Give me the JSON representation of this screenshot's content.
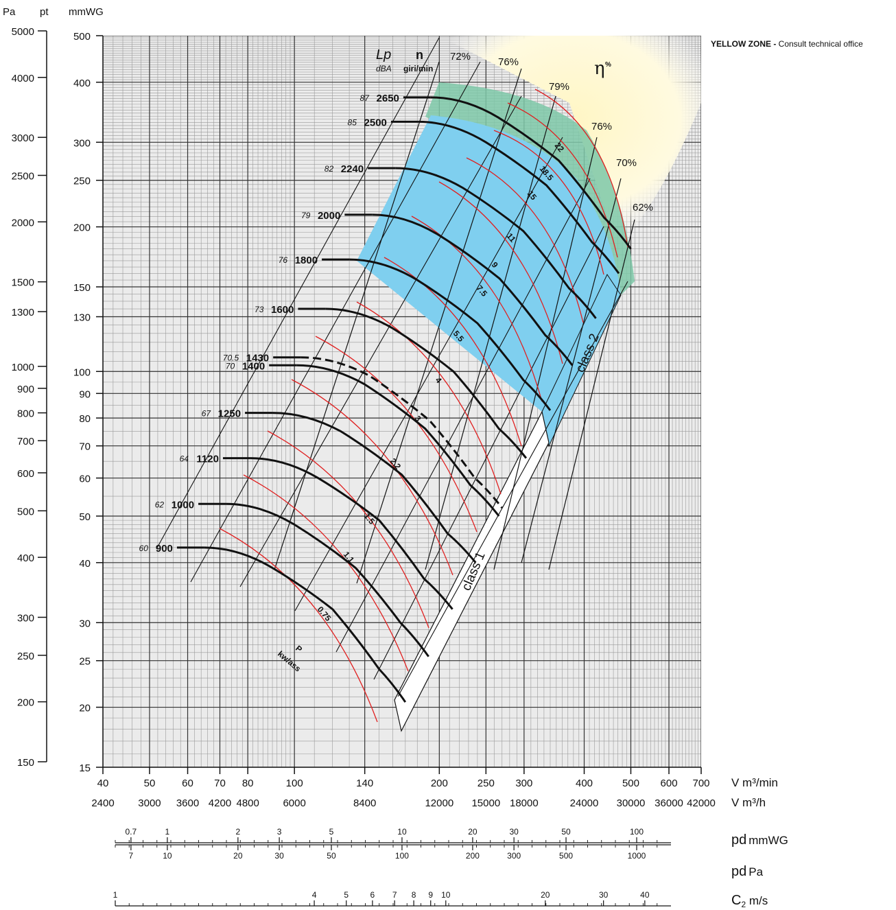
{
  "note": {
    "bold": "YELLOW ZONE",
    "dash": " - ",
    "text": "Consult technical office"
  },
  "headers": {
    "pa": "Pa",
    "pt": "pt",
    "mmwg": "mmWG",
    "lp": "Lp",
    "dba": "dBA",
    "n": "n",
    "giri": "giri/min",
    "eta": "η",
    "pct": "%"
  },
  "xlabels": {
    "vmin": "V m³/min",
    "vh": "V m³/h"
  },
  "bottom": {
    "pd_mmwg": "pd",
    "pd_mmwg_unit": "mmWG",
    "pd_pa": "pd",
    "pd_pa_unit": "Pa",
    "c2": "C",
    "c2_sub": "2",
    "c2_unit": " m/s"
  },
  "power_unit": {
    "p": "P",
    "unit": "kw/ass"
  },
  "class_labels": [
    "class 1",
    "class 2"
  ],
  "chart_data": {
    "type": "line",
    "x_axis": {
      "unit": "V m³/min",
      "scale": "log",
      "range": [
        40,
        700
      ],
      "ticks": [
        40,
        50,
        60,
        70,
        80,
        100,
        140,
        200,
        250,
        300,
        400,
        500,
        600,
        700
      ],
      "ticks_m3h": [
        "2400",
        "3000",
        "3600",
        "4200",
        "4800",
        "6000",
        "8400",
        "12000",
        "15000",
        "18000",
        "24000",
        "30000",
        "36000",
        "42000"
      ]
    },
    "y_axis": {
      "unit": "mmWG",
      "scale": "log",
      "range": [
        15,
        500
      ],
      "ticks": [
        15,
        20,
        25,
        30,
        40,
        50,
        60,
        70,
        80,
        90,
        100,
        130,
        150,
        200,
        250,
        300,
        400,
        500
      ]
    },
    "y_axis_pa": {
      "unit": "Pa",
      "ticks": [
        150,
        200,
        250,
        300,
        400,
        500,
        600,
        700,
        800,
        900,
        1000,
        1300,
        1500,
        2000,
        2500,
        3000,
        4000,
        5000
      ]
    },
    "speed_curves": [
      {
        "rpm": "900",
        "lp": "60",
        "q": [
          65,
          90,
          120,
          150,
          170
        ],
        "p": [
          43,
          39,
          32,
          24,
          20.5
        ]
      },
      {
        "rpm": "1000",
        "lp": "62",
        "q": [
          72,
          100,
          134,
          166,
          190
        ],
        "p": [
          53,
          48,
          39,
          30,
          25.5
        ]
      },
      {
        "rpm": "1120",
        "lp": "64",
        "q": [
          81,
          112,
          150,
          186,
          213
        ],
        "p": [
          66,
          60,
          49,
          37,
          32
        ]
      },
      {
        "rpm": "1250",
        "lp": "67",
        "q": [
          90,
          125,
          167,
          208,
          238
        ],
        "p": [
          82,
          75,
          61,
          46,
          40
        ]
      },
      {
        "rpm": "1400",
        "lp": "70",
        "q": [
          101,
          140,
          187,
          232,
          266
        ],
        "p": [
          103,
          94,
          76,
          58,
          50
        ]
      },
      {
        "rpm": "1430",
        "lp": "70.5",
        "q": [
          103,
          143,
          191,
          237,
          270
        ],
        "p": [
          107,
          98,
          79,
          60,
          52
        ],
        "dashed": true
      },
      {
        "rpm": "1600",
        "lp": "73",
        "q": [
          116,
          160,
          214,
          266,
          303
        ],
        "p": [
          135,
          123,
          100,
          76,
          66
        ]
      },
      {
        "rpm": "1800",
        "lp": "76",
        "q": [
          130,
          180,
          240,
          299,
          340
        ],
        "p": [
          171,
          155,
          126,
          96,
          83
        ]
      },
      {
        "rpm": "2000",
        "lp": "79",
        "q": [
          145,
          200,
          267,
          332,
          378
        ],
        "p": [
          212,
          192,
          156,
          119,
          103
        ]
      },
      {
        "rpm": "2240",
        "lp": "82",
        "q": [
          162,
          224,
          299,
          372,
          423
        ],
        "p": [
          265,
          241,
          196,
          149,
          129
        ]
      },
      {
        "rpm": "2500",
        "lp": "85",
        "q": [
          181,
          250,
          334,
          415,
          472
        ],
        "p": [
          331,
          300,
          244,
          186,
          160
        ]
      },
      {
        "rpm": "2650",
        "lp": "87",
        "q": [
          192,
          265,
          354,
          440,
          500
        ],
        "p": [
          372,
          338,
          275,
          209,
          180
        ]
      }
    ],
    "power_lines_kw": [
      "0.75",
      "1.1",
      "1.5",
      "2.2",
      "3",
      "4",
      "5.5",
      "7.5",
      "9",
      "11",
      "15",
      "18.5",
      "22"
    ],
    "efficiency_lines": [
      "72%",
      "76%",
      "79%",
      "76%",
      "70%",
      "62%"
    ],
    "zones": [
      "class 1",
      "class 2",
      "YELLOW ZONE"
    ],
    "pd_mmwg_ticks": [
      "0.7",
      "1",
      "2",
      "3",
      "5",
      "10",
      "20",
      "30",
      "50",
      "100"
    ],
    "pd_pa_ticks": [
      "7",
      "10",
      "20",
      "30",
      "50",
      "100",
      "200",
      "300",
      "500",
      "1000"
    ],
    "c2_ticks": [
      "1",
      "4",
      "5",
      "6",
      "7",
      "8",
      "9",
      "10",
      "20",
      "30",
      "40"
    ]
  }
}
